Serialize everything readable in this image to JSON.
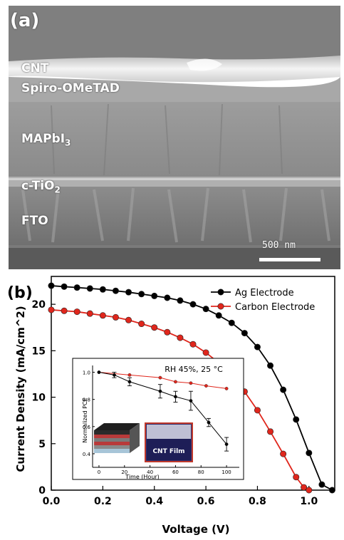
{
  "panel_a": {
    "label": "(a)",
    "layers": {
      "cnt": "CNT",
      "spiro": "Spiro-OMeTAD",
      "mapbi_main": "MAPbI",
      "mapbi_sub": "3",
      "tio2_main": "c-TiO",
      "tio2_sub": "2",
      "fto": "FTO"
    },
    "scale_bar": "500 nm"
  },
  "panel_b": {
    "label": "(b)"
  },
  "chart_data": [
    {
      "type": "line",
      "xlabel": "Voltage (V)",
      "ylabel": "Current Density (mA/cm^2)",
      "xlim": [
        0.0,
        1.1
      ],
      "ylim": [
        0,
        23
      ],
      "xticks": [
        "0.0",
        "0.2",
        "0.4",
        "0.6",
        "0.8",
        "1.0"
      ],
      "yticks": [
        "0",
        "5",
        "10",
        "15",
        "20"
      ],
      "legend_position": "top-right",
      "series": [
        {
          "name": "Ag Electrode",
          "color": "#000000",
          "x": [
            0.0,
            0.05,
            0.1,
            0.15,
            0.2,
            0.25,
            0.3,
            0.35,
            0.4,
            0.45,
            0.5,
            0.55,
            0.6,
            0.65,
            0.7,
            0.75,
            0.8,
            0.85,
            0.9,
            0.95,
            1.0,
            1.05,
            1.09
          ],
          "y": [
            22.0,
            21.9,
            21.8,
            21.7,
            21.6,
            21.45,
            21.3,
            21.1,
            20.9,
            20.7,
            20.4,
            20.0,
            19.5,
            18.8,
            18.0,
            16.9,
            15.4,
            13.4,
            10.8,
            7.6,
            4.0,
            0.6,
            0
          ]
        },
        {
          "name": "Carbon Electrode",
          "color": "#e0261c",
          "x": [
            0.0,
            0.05,
            0.1,
            0.15,
            0.2,
            0.25,
            0.3,
            0.35,
            0.4,
            0.45,
            0.5,
            0.55,
            0.6,
            0.65,
            0.7,
            0.75,
            0.8,
            0.85,
            0.9,
            0.95,
            0.98,
            1.0
          ],
          "y": [
            19.4,
            19.3,
            19.2,
            19.0,
            18.8,
            18.6,
            18.3,
            17.9,
            17.5,
            17.0,
            16.4,
            15.7,
            14.8,
            13.7,
            12.3,
            10.6,
            8.6,
            6.3,
            3.9,
            1.4,
            0.3,
            0
          ]
        }
      ]
    },
    {
      "type": "line",
      "title": "RH 45%, 25 °C",
      "xlabel": "Time (Hour)",
      "ylabel": "Normalized PCE",
      "xlim": [
        -5,
        110
      ],
      "ylim": [
        0.3,
        1.05
      ],
      "xticks": [
        "0",
        "20",
        "40",
        "60",
        "80",
        "100"
      ],
      "yticks": [
        "0.4",
        "0.6",
        "0.8",
        "1.0"
      ],
      "series": [
        {
          "color": "#e0261c",
          "x": [
            0,
            24,
            48,
            60,
            72,
            84,
            100
          ],
          "y": [
            1.0,
            0.98,
            0.96,
            0.93,
            0.92,
            0.9,
            0.88
          ]
        },
        {
          "color": "#000000",
          "x": [
            0,
            12,
            24,
            48,
            60,
            72,
            86,
            100
          ],
          "y": [
            1.0,
            0.98,
            0.93,
            0.86,
            0.82,
            0.79,
            0.63,
            0.47
          ],
          "err": [
            0.0,
            0.02,
            0.03,
            0.05,
            0.04,
            0.07,
            0.03,
            0.05
          ]
        }
      ],
      "image_label": "CNT Film"
    }
  ]
}
